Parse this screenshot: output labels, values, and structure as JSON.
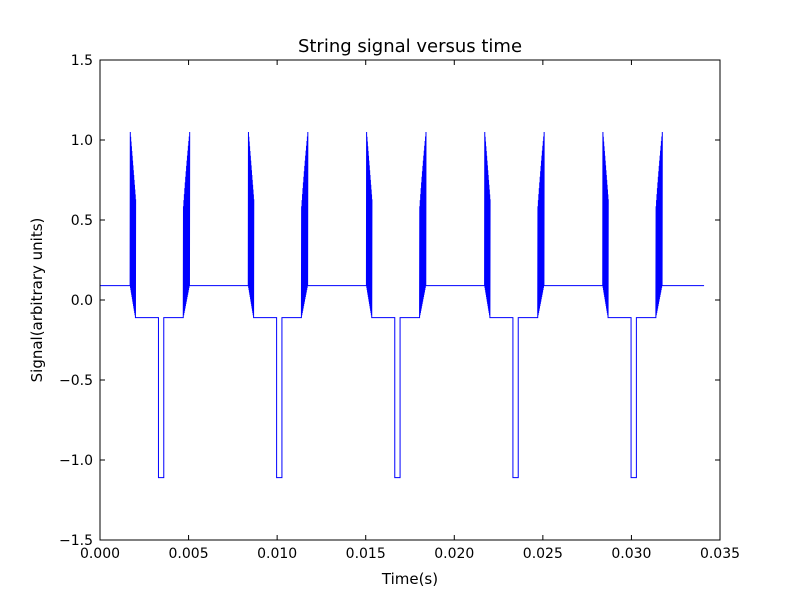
{
  "chart_data": {
    "type": "line",
    "title": "String signal versus time",
    "xlabel": "Time(s)",
    "ylabel": "Signal(arbitrary units)",
    "xlim": [
      0.0,
      0.035
    ],
    "ylim": [
      -1.5,
      1.5
    ],
    "xticks": [
      0.0,
      0.005,
      0.01,
      0.015,
      0.02,
      0.025,
      0.03,
      0.035
    ],
    "xtick_labels": [
      "0.000",
      "0.005",
      "0.010",
      "0.015",
      "0.020",
      "0.025",
      "0.030",
      "0.035"
    ],
    "yticks": [
      -1.5,
      -1.0,
      -0.5,
      0.0,
      0.5,
      1.0,
      1.5
    ],
    "ytick_labels": [
      "−1.5",
      "−1.0",
      "−0.5",
      "0.0",
      "0.5",
      "1.0",
      "1.5"
    ],
    "grid": false,
    "series": [
      {
        "color": "#0000ff",
        "period": 0.00667,
        "baseline_high": 0.09,
        "baseline_low": -0.11,
        "spike_min": -1.11,
        "burst_max": 1.05,
        "x": [
          0.0,
          0.0017,
          0.00175,
          0.0018,
          0.00185,
          0.0019,
          0.00195,
          0.002,
          0.002,
          0.0024,
          0.0024,
          0.0033,
          0.0033,
          0.0035,
          0.0035,
          0.0036,
          0.0036,
          0.0047,
          0.00475,
          0.0048,
          0.00485,
          0.0049,
          0.00495,
          0.005,
          0.00505,
          0.0084,
          0.00845,
          0.0085,
          0.00855,
          0.0086,
          0.00865,
          0.0087,
          0.0087,
          0.0091,
          0.0091,
          0.0099,
          0.0099,
          0.0102,
          0.0102,
          0.0103,
          0.0103,
          0.0114,
          0.01145,
          0.0115,
          0.01155,
          0.0116,
          0.01165,
          0.0117,
          0.01175,
          0.015,
          0.01505,
          0.0151,
          0.01515,
          0.0152,
          0.01525,
          0.0153,
          0.0153,
          0.0157,
          0.0157,
          0.0166,
          0.0166,
          0.0169,
          0.0169,
          0.017,
          0.017,
          0.0181,
          0.01815,
          0.0182,
          0.01825,
          0.0183,
          0.01835,
          0.0184,
          0.01845,
          0.0217,
          0.01775,
          0.0218,
          0.01785,
          0.0219,
          0.01795,
          0.022,
          0.022,
          0.0224,
          0.0224,
          0.0232,
          0.0232,
          0.0235,
          0.0235,
          0.0236,
          0.0236,
          0.0247,
          0.02475,
          0.0248,
          0.02485,
          0.0249,
          0.02495,
          0.025,
          0.02505,
          0.0284,
          0.02845,
          0.0285,
          0.02855,
          0.0286,
          0.02865,
          0.0287,
          0.0287,
          0.0291,
          0.0291,
          0.0299,
          0.0299,
          0.0302,
          0.0302,
          0.0303,
          0.0303,
          0.0314,
          0.03145,
          0.0315,
          0.03155,
          0.0316,
          0.03165,
          0.0317,
          0.03175,
          0.0341
        ],
        "y": [
          0.09,
          0.09,
          1.05,
          -0.03,
          1.0,
          -0.07,
          0.95,
          -0.11,
          -0.11,
          -0.11,
          -0.11,
          -0.11,
          -1.11,
          -1.11,
          -0.11,
          -0.11,
          -0.11,
          -0.11,
          0.85,
          -0.07,
          0.95,
          -0.03,
          1.0,
          0.05,
          1.05,
          0.09,
          1.05,
          -0.03,
          1.0,
          -0.07,
          0.95,
          -0.11,
          -0.11,
          -0.11,
          -0.11,
          -0.11,
          -1.11,
          -1.11,
          -0.11,
          -0.11,
          -0.11,
          -0.11,
          0.85,
          -0.07,
          0.95,
          -0.03,
          1.0,
          0.05,
          1.05,
          0.09,
          1.05,
          -0.03,
          1.0,
          -0.07,
          0.95,
          -0.11,
          -0.11,
          -0.11,
          -0.11,
          -0.11,
          -1.11,
          -1.11,
          -0.11,
          -0.11,
          -0.11,
          -0.11,
          0.85,
          -0.07,
          0.95,
          -0.03,
          1.0,
          0.05,
          1.05,
          0.09,
          1.05,
          -0.03,
          1.0,
          -0.07,
          0.95,
          -0.11,
          -0.11,
          -0.11,
          -0.11,
          -0.11,
          -1.11,
          -1.11,
          -0.11,
          -0.11,
          -0.11,
          -0.11,
          0.85,
          -0.07,
          0.95,
          -0.03,
          1.0,
          0.05,
          1.05,
          0.09,
          1.05,
          -0.03,
          1.0,
          -0.07,
          0.95,
          -0.11,
          -0.11,
          -0.11,
          -0.11,
          -0.11,
          -1.11,
          -1.11,
          -0.11,
          -0.11,
          -0.11,
          -0.11,
          0.85,
          -0.07,
          0.95,
          -0.03,
          1.0,
          0.05,
          1.05,
          0.09
        ]
      }
    ]
  }
}
